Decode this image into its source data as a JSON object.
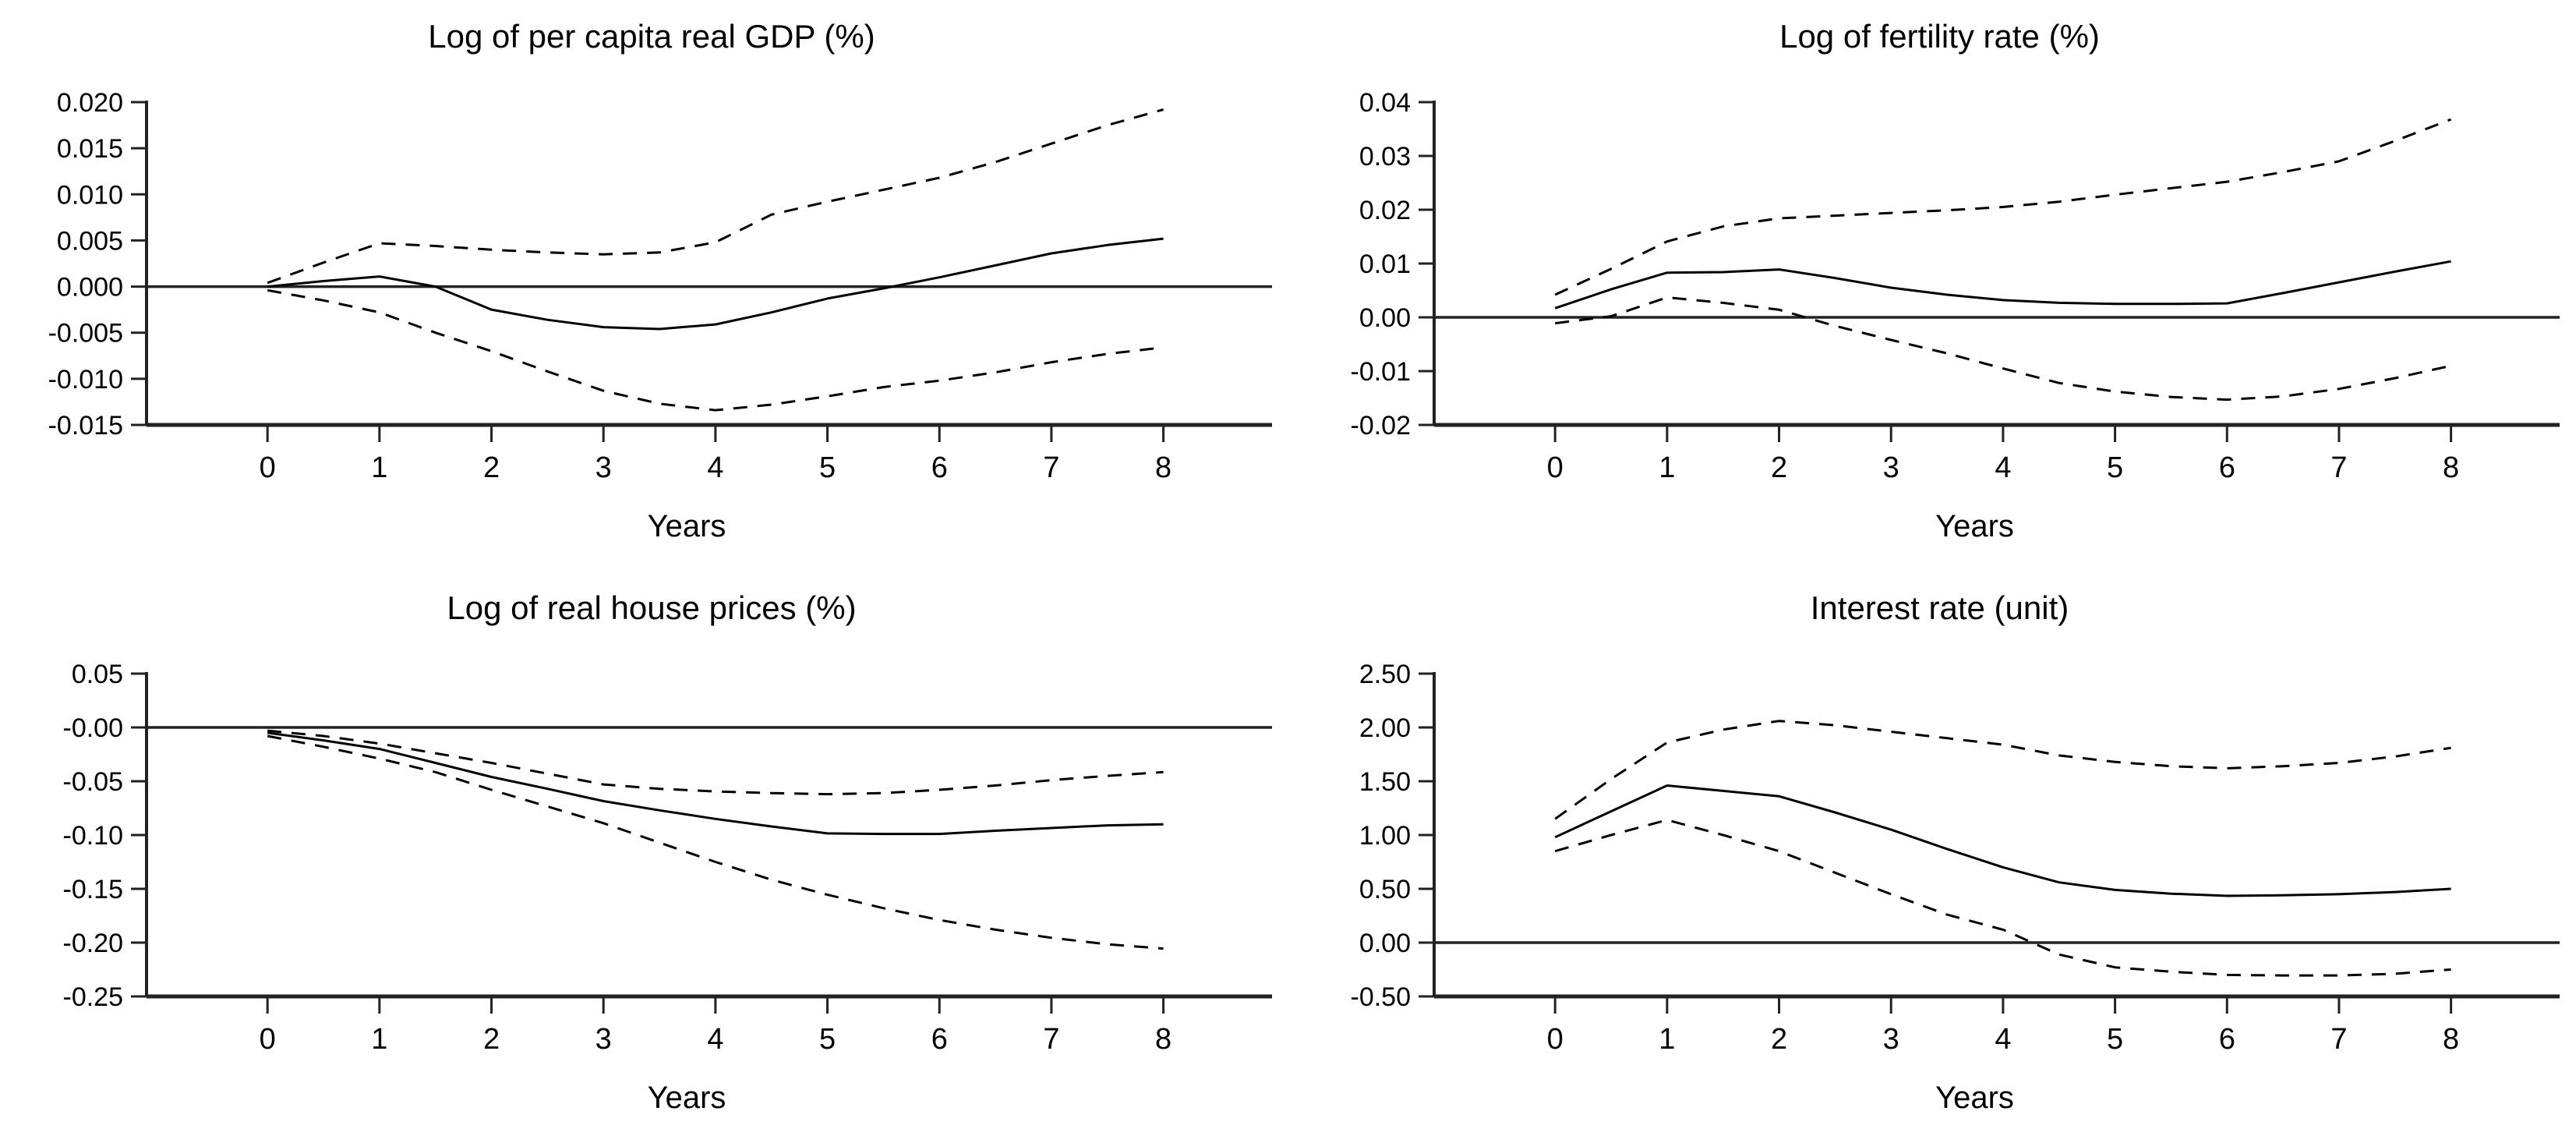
{
  "figure": {
    "background": "#ffffff",
    "text_color": "#000000",
    "curve_color": "#000000",
    "axis_color": "#222222"
  },
  "chart_data": [
    {
      "type": "line",
      "title": "Log of per capita real GDP (%)",
      "xlabel": "Years",
      "legend": "none",
      "grid": false,
      "xlim": [
        -1.08,
        8.97
      ],
      "ylim": [
        -0.015,
        0.02
      ],
      "xticks": [
        0,
        1,
        2,
        3,
        4,
        5,
        6,
        7,
        8
      ],
      "xtick_labels": [
        "0",
        "1",
        "2",
        "3",
        "4",
        "5",
        "6",
        "7",
        "8"
      ],
      "yticks": [
        0.02,
        0.015,
        0.01,
        0.005,
        0.0,
        -0.005,
        -0.01,
        -0.015
      ],
      "ytick_labels": [
        "0.020",
        "0.015",
        "0.010",
        "0.005",
        "0.000",
        "-0.005",
        "-0.010",
        "-0.015"
      ],
      "zero_line": 0,
      "x": [
        0,
        0.5,
        1,
        1.5,
        2,
        2.5,
        3,
        3.5,
        4,
        4.5,
        5,
        5.5,
        6,
        6.5,
        7,
        7.5,
        8
      ],
      "series": [
        {
          "name": "upper_band",
          "style": "dashed",
          "values": [
            0.0004,
            0.0026,
            0.0047,
            0.0044,
            0.004,
            0.0037,
            0.0035,
            0.0037,
            0.0048,
            0.0078,
            0.0092,
            0.0105,
            0.0118,
            0.0135,
            0.0155,
            0.0175,
            0.0192
          ]
        },
        {
          "name": "response",
          "style": "solid",
          "values": [
            0.0,
            0.0006,
            0.0011,
            0.0,
            -0.0025,
            -0.0036,
            -0.0044,
            -0.0046,
            -0.0041,
            -0.0028,
            -0.0013,
            -0.0002,
            0.001,
            0.0023,
            0.0036,
            0.0045,
            0.0052
          ]
        },
        {
          "name": "lower_band",
          "style": "dashed",
          "values": [
            -0.0004,
            -0.0015,
            -0.0028,
            -0.005,
            -0.007,
            -0.0092,
            -0.0113,
            -0.0127,
            -0.0134,
            -0.0128,
            -0.0119,
            -0.0109,
            -0.0102,
            -0.0093,
            -0.0082,
            -0.0073,
            -0.0066
          ]
        }
      ]
    },
    {
      "type": "line",
      "title": "Log of fertility rate (%)",
      "xlabel": "Years",
      "legend": "none",
      "grid": false,
      "xlim": [
        -1.08,
        8.97
      ],
      "ylim": [
        -0.02,
        0.04
      ],
      "xticks": [
        0,
        1,
        2,
        3,
        4,
        5,
        6,
        7,
        8
      ],
      "xtick_labels": [
        "0",
        "1",
        "2",
        "3",
        "4",
        "5",
        "6",
        "7",
        "8"
      ],
      "yticks": [
        0.04,
        0.03,
        0.02,
        0.01,
        0.0,
        -0.01,
        -0.02
      ],
      "ytick_labels": [
        "0.04",
        "0.03",
        "0.02",
        "0.01",
        "0.00",
        "-0.01",
        "-0.02"
      ],
      "zero_line": 0,
      "x": [
        0,
        0.5,
        1,
        1.5,
        2,
        2.5,
        3,
        3.5,
        4,
        4.5,
        5,
        5.5,
        6,
        6.5,
        7,
        7.5,
        8
      ],
      "series": [
        {
          "name": "upper_band",
          "style": "dashed",
          "values": [
            0.0042,
            0.009,
            0.0141,
            0.0169,
            0.0184,
            0.0189,
            0.0194,
            0.0199,
            0.0205,
            0.0215,
            0.0228,
            0.024,
            0.0252,
            0.027,
            0.029,
            0.0328,
            0.0368
          ]
        },
        {
          "name": "response",
          "style": "solid",
          "values": [
            0.0017,
            0.0052,
            0.0083,
            0.0084,
            0.0089,
            0.0073,
            0.0055,
            0.0042,
            0.0032,
            0.0027,
            0.0025,
            0.0025,
            0.0026,
            0.0045,
            0.0065,
            0.0085,
            0.0104
          ]
        },
        {
          "name": "lower_band",
          "style": "dashed",
          "values": [
            -0.0011,
            0.0002,
            0.0037,
            0.0027,
            0.0014,
            -0.0016,
            -0.0042,
            -0.0067,
            -0.0095,
            -0.0122,
            -0.0138,
            -0.0148,
            -0.0153,
            -0.0147,
            -0.0133,
            -0.0113,
            -0.009
          ]
        }
      ]
    },
    {
      "type": "line",
      "title": "Log of real house prices (%)",
      "xlabel": "Years",
      "legend": "none",
      "grid": false,
      "xlim": [
        -1.08,
        8.97
      ],
      "ylim": [
        -0.25,
        0.05
      ],
      "xticks": [
        0,
        1,
        2,
        3,
        4,
        5,
        6,
        7,
        8
      ],
      "xtick_labels": [
        "0",
        "1",
        "2",
        "3",
        "4",
        "5",
        "6",
        "7",
        "8"
      ],
      "yticks": [
        0.05,
        0.0,
        -0.05,
        -0.1,
        -0.15,
        -0.2,
        -0.25
      ],
      "ytick_labels": [
        "0.05",
        "-0.00",
        "-0.05",
        "-0.10",
        "-0.15",
        "-0.20",
        "-0.25"
      ],
      "zero_line": 0,
      "x": [
        0,
        0.5,
        1,
        1.5,
        2,
        2.5,
        3,
        3.5,
        4,
        4.5,
        5,
        5.5,
        6,
        6.5,
        7,
        7.5,
        8
      ],
      "series": [
        {
          "name": "upper_band",
          "style": "dashed",
          "values": [
            -0.003,
            -0.008,
            -0.015,
            -0.024,
            -0.033,
            -0.043,
            -0.053,
            -0.057,
            -0.0595,
            -0.061,
            -0.062,
            -0.061,
            -0.058,
            -0.054,
            -0.049,
            -0.045,
            -0.0415
          ]
        },
        {
          "name": "response",
          "style": "solid",
          "values": [
            -0.005,
            -0.012,
            -0.02,
            -0.033,
            -0.046,
            -0.057,
            -0.0685,
            -0.077,
            -0.085,
            -0.092,
            -0.0985,
            -0.099,
            -0.099,
            -0.096,
            -0.0935,
            -0.091,
            -0.09
          ]
        },
        {
          "name": "lower_band",
          "style": "dashed",
          "values": [
            -0.008,
            -0.018,
            -0.029,
            -0.0415,
            -0.058,
            -0.0735,
            -0.089,
            -0.107,
            -0.125,
            -0.1415,
            -0.1555,
            -0.168,
            -0.179,
            -0.188,
            -0.1955,
            -0.2015,
            -0.2055
          ]
        }
      ]
    },
    {
      "type": "line",
      "title": "Interest rate (unit)",
      "xlabel": "Years",
      "legend": "none",
      "grid": false,
      "xlim": [
        -1.08,
        8.97
      ],
      "ylim": [
        -0.5,
        2.5
      ],
      "xticks": [
        0,
        1,
        2,
        3,
        4,
        5,
        6,
        7,
        8
      ],
      "xtick_labels": [
        "0",
        "1",
        "2",
        "3",
        "4",
        "5",
        "6",
        "7",
        "8"
      ],
      "yticks": [
        2.5,
        2.0,
        1.5,
        1.0,
        0.5,
        0.0,
        -0.5
      ],
      "ytick_labels": [
        "2.50",
        "2.00",
        "1.50",
        "1.00",
        "0.50",
        "0.00",
        "-0.50"
      ],
      "zero_line": 0,
      "x": [
        0,
        0.5,
        1,
        1.5,
        2,
        2.5,
        3,
        3.5,
        4,
        4.5,
        5,
        5.5,
        6,
        6.5,
        7,
        7.5,
        8
      ],
      "series": [
        {
          "name": "upper_band",
          "style": "dashed",
          "values": [
            1.15,
            1.52,
            1.86,
            1.98,
            2.06,
            2.02,
            1.96,
            1.9,
            1.84,
            1.74,
            1.68,
            1.64,
            1.62,
            1.64,
            1.67,
            1.73,
            1.81
          ]
        },
        {
          "name": "response",
          "style": "solid",
          "values": [
            0.98,
            1.22,
            1.46,
            1.41,
            1.36,
            1.21,
            1.05,
            0.87,
            0.7,
            0.56,
            0.49,
            0.455,
            0.435,
            0.44,
            0.45,
            0.47,
            0.5
          ]
        },
        {
          "name": "lower_band",
          "style": "dashed",
          "values": [
            0.85,
            1.0,
            1.14,
            1.0,
            0.85,
            0.65,
            0.45,
            0.26,
            0.12,
            -0.11,
            -0.23,
            -0.27,
            -0.3,
            -0.305,
            -0.305,
            -0.29,
            -0.25
          ]
        }
      ]
    }
  ]
}
